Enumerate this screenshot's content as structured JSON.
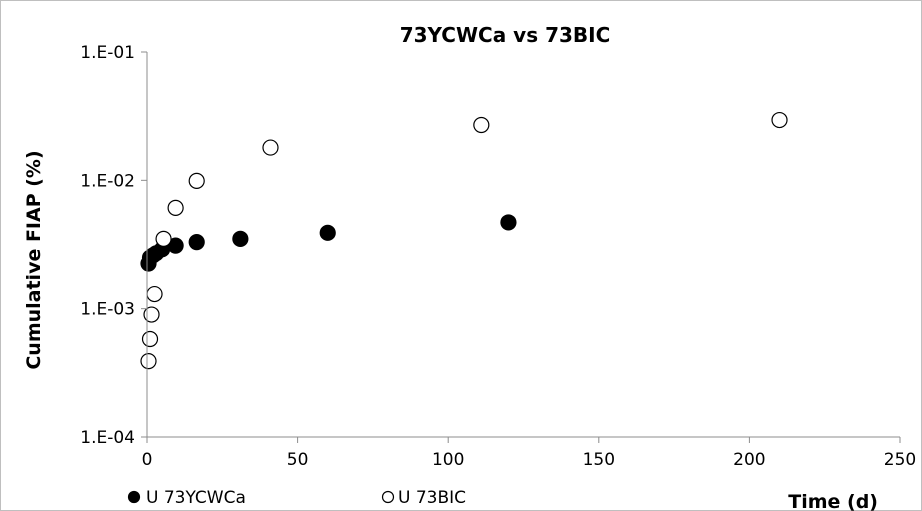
{
  "chart_data": {
    "type": "scatter",
    "title": "73YCWCa vs 73BIC",
    "xlabel": "Time (d)",
    "ylabel": "Cumulative FIAP (%)",
    "xlim": [
      0,
      250
    ],
    "ylim": [
      0.0001,
      0.1
    ],
    "yscale": "log",
    "x_ticks": [
      0,
      50,
      100,
      150,
      200,
      250
    ],
    "x_tick_labels": [
      "0",
      "50",
      "100",
      "150",
      "200",
      "250"
    ],
    "y_ticks": [
      0.0001,
      0.001,
      0.01,
      0.1
    ],
    "y_tick_labels": [
      "1.E-04",
      "1.E-03",
      "1.E-02",
      "1.E-01"
    ],
    "grid": false,
    "legend_position": "bottom",
    "series": [
      {
        "name": "U 73YCWCa",
        "marker": "filled-circle",
        "color": "#000000",
        "points": [
          {
            "x": 0.5,
            "y": 0.00225
          },
          {
            "x": 1,
            "y": 0.0025
          },
          {
            "x": 2,
            "y": 0.0026
          },
          {
            "x": 3,
            "y": 0.0027
          },
          {
            "x": 5,
            "y": 0.0029
          },
          {
            "x": 9.5,
            "y": 0.0031
          },
          {
            "x": 16.5,
            "y": 0.0033
          },
          {
            "x": 31,
            "y": 0.0035
          },
          {
            "x": 60,
            "y": 0.0039
          },
          {
            "x": 120,
            "y": 0.0047
          }
        ]
      },
      {
        "name": "U 73BIC",
        "marker": "open-circle",
        "color": "#000000",
        "points": [
          {
            "x": 0.5,
            "y": 0.00039
          },
          {
            "x": 1,
            "y": 0.00058
          },
          {
            "x": 1.5,
            "y": 0.0009
          },
          {
            "x": 2.5,
            "y": 0.0013
          },
          {
            "x": 5.5,
            "y": 0.0035
          },
          {
            "x": 9.5,
            "y": 0.0061
          },
          {
            "x": 16.5,
            "y": 0.0099
          },
          {
            "x": 41,
            "y": 0.018
          },
          {
            "x": 111,
            "y": 0.027
          },
          {
            "x": 210,
            "y": 0.0295
          }
        ]
      }
    ]
  }
}
